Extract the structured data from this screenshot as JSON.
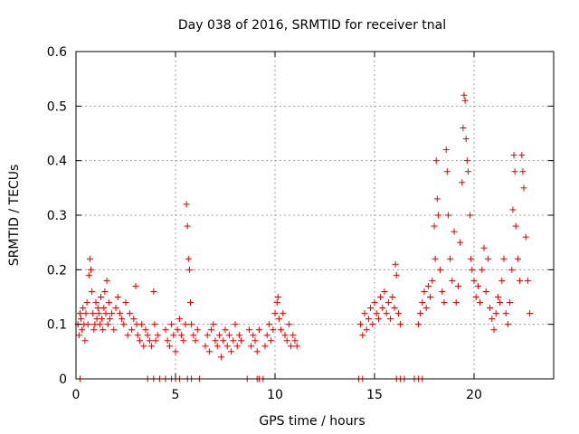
{
  "chart_data": {
    "type": "scatter",
    "title": "Day 038 of 2016, SRMTID for receiver tnal",
    "xlabel": "GPS time / hours",
    "ylabel": "SRMTID / TECUs",
    "xlim": [
      0,
      24
    ],
    "ylim": [
      0,
      0.6
    ],
    "xticks": [
      "0",
      "5",
      "10",
      "15",
      "20"
    ],
    "yticks": [
      "0",
      "0.1",
      "0.2",
      "0.3",
      "0.4",
      "0.5",
      "0.6"
    ],
    "grid": true,
    "marker": "+",
    "color": "#e00000",
    "series": [
      {
        "name": "SRMTID",
        "points": [
          [
            0.1,
            0.1
          ],
          [
            0.15,
            0.08
          ],
          [
            0.2,
            0.12
          ],
          [
            0.25,
            0.11
          ],
          [
            0.3,
            0.09
          ],
          [
            0.35,
            0.13
          ],
          [
            0.4,
            0.1
          ],
          [
            0.45,
            0.07
          ],
          [
            0.5,
            0.12
          ],
          [
            0.55,
            0.14
          ],
          [
            0.6,
            0.1
          ],
          [
            0.65,
            0.19
          ],
          [
            0.7,
            0.22
          ],
          [
            0.75,
            0.2
          ],
          [
            0.8,
            0.16
          ],
          [
            0.85,
            0.12
          ],
          [
            0.9,
            0.09
          ],
          [
            0.95,
            0.1
          ],
          [
            1.0,
            0.14
          ],
          [
            1.05,
            0.11
          ],
          [
            1.1,
            0.13
          ],
          [
            1.15,
            0.12
          ],
          [
            1.2,
            0.1
          ],
          [
            1.25,
            0.15
          ],
          [
            1.3,
            0.11
          ],
          [
            1.35,
            0.09
          ],
          [
            1.4,
            0.13
          ],
          [
            1.45,
            0.16
          ],
          [
            1.5,
            0.12
          ],
          [
            1.55,
            0.18
          ],
          [
            1.6,
            0.1
          ],
          [
            1.65,
            0.14
          ],
          [
            1.7,
            0.11
          ],
          [
            1.8,
            0.12
          ],
          [
            1.9,
            0.09
          ],
          [
            2.0,
            0.13
          ],
          [
            2.1,
            0.15
          ],
          [
            2.2,
            0.12
          ],
          [
            2.3,
            0.11
          ],
          [
            2.4,
            0.1
          ],
          [
            2.5,
            0.14
          ],
          [
            2.6,
            0.08
          ],
          [
            2.7,
            0.12
          ],
          [
            2.8,
            0.09
          ],
          [
            2.9,
            0.11
          ],
          [
            3.0,
            0.17
          ],
          [
            3.05,
            0.1
          ],
          [
            3.1,
            0.08
          ],
          [
            3.2,
            0.07
          ],
          [
            3.3,
            0.1
          ],
          [
            3.4,
            0.06
          ],
          [
            3.5,
            0.09
          ],
          [
            3.6,
            0.08
          ],
          [
            3.7,
            0.07
          ],
          [
            3.8,
            0.06
          ],
          [
            3.9,
            0.16
          ],
          [
            3.95,
            0.1
          ],
          [
            4.0,
            0.07
          ],
          [
            4.1,
            0.08
          ],
          [
            4.5,
            0.09
          ],
          [
            4.6,
            0.07
          ],
          [
            4.7,
            0.06
          ],
          [
            4.8,
            0.1
          ],
          [
            4.9,
            0.08
          ],
          [
            5.0,
            0.05
          ],
          [
            5.1,
            0.09
          ],
          [
            5.2,
            0.11
          ],
          [
            5.3,
            0.08
          ],
          [
            5.4,
            0.07
          ],
          [
            5.5,
            0.1
          ],
          [
            5.55,
            0.32
          ],
          [
            5.6,
            0.28
          ],
          [
            5.65,
            0.22
          ],
          [
            5.7,
            0.2
          ],
          [
            5.75,
            0.14
          ],
          [
            5.8,
            0.1
          ],
          [
            5.9,
            0.08
          ],
          [
            6.0,
            0.07
          ],
          [
            6.1,
            0.09
          ],
          [
            6.5,
            0.06
          ],
          [
            6.6,
            0.08
          ],
          [
            6.7,
            0.05
          ],
          [
            6.8,
            0.09
          ],
          [
            6.9,
            0.1
          ],
          [
            7.0,
            0.07
          ],
          [
            7.1,
            0.06
          ],
          [
            7.2,
            0.08
          ],
          [
            7.3,
            0.04
          ],
          [
            7.4,
            0.07
          ],
          [
            7.5,
            0.09
          ],
          [
            7.6,
            0.06
          ],
          [
            7.7,
            0.08
          ],
          [
            7.8,
            0.05
          ],
          [
            7.9,
            0.07
          ],
          [
            8.0,
            0.1
          ],
          [
            8.1,
            0.06
          ],
          [
            8.2,
            0.08
          ],
          [
            8.3,
            0.07
          ],
          [
            8.7,
            0.09
          ],
          [
            8.8,
            0.06
          ],
          [
            8.9,
            0.08
          ],
          [
            9.0,
            0.07
          ],
          [
            9.1,
            0.05
          ],
          [
            9.2,
            0.09
          ],
          [
            9.5,
            0.06
          ],
          [
            9.6,
            0.08
          ],
          [
            9.7,
            0.1
          ],
          [
            9.8,
            0.07
          ],
          [
            9.9,
            0.09
          ],
          [
            10.0,
            0.12
          ],
          [
            10.1,
            0.14
          ],
          [
            10.15,
            0.15
          ],
          [
            10.2,
            0.11
          ],
          [
            10.3,
            0.09
          ],
          [
            10.4,
            0.12
          ],
          [
            10.5,
            0.08
          ],
          [
            10.6,
            0.07
          ],
          [
            10.7,
            0.1
          ],
          [
            10.8,
            0.06
          ],
          [
            10.9,
            0.08
          ],
          [
            11.0,
            0.07
          ],
          [
            11.1,
            0.06
          ],
          [
            14.3,
            0.1
          ],
          [
            14.4,
            0.08
          ],
          [
            14.5,
            0.12
          ],
          [
            14.6,
            0.09
          ],
          [
            14.7,
            0.11
          ],
          [
            14.8,
            0.13
          ],
          [
            14.9,
            0.1
          ],
          [
            15.0,
            0.14
          ],
          [
            15.1,
            0.12
          ],
          [
            15.2,
            0.11
          ],
          [
            15.3,
            0.15
          ],
          [
            15.4,
            0.13
          ],
          [
            15.5,
            0.16
          ],
          [
            15.6,
            0.12
          ],
          [
            15.7,
            0.14
          ],
          [
            15.8,
            0.11
          ],
          [
            15.9,
            0.15
          ],
          [
            16.0,
            0.13
          ],
          [
            16.05,
            0.21
          ],
          [
            16.1,
            0.19
          ],
          [
            16.2,
            0.12
          ],
          [
            16.3,
            0.1
          ],
          [
            17.2,
            0.1
          ],
          [
            17.3,
            0.12
          ],
          [
            17.4,
            0.14
          ],
          [
            17.5,
            0.16
          ],
          [
            17.6,
            0.13
          ],
          [
            17.7,
            0.17
          ],
          [
            17.8,
            0.15
          ],
          [
            17.9,
            0.18
          ],
          [
            18.0,
            0.28
          ],
          [
            18.05,
            0.22
          ],
          [
            18.1,
            0.4
          ],
          [
            18.15,
            0.33
          ],
          [
            18.2,
            0.3
          ],
          [
            18.3,
            0.2
          ],
          [
            18.4,
            0.16
          ],
          [
            18.5,
            0.14
          ],
          [
            18.6,
            0.42
          ],
          [
            18.65,
            0.38
          ],
          [
            18.7,
            0.3
          ],
          [
            18.8,
            0.22
          ],
          [
            18.9,
            0.18
          ],
          [
            19.0,
            0.27
          ],
          [
            19.1,
            0.14
          ],
          [
            19.2,
            0.17
          ],
          [
            19.3,
            0.25
          ],
          [
            19.4,
            0.36
          ],
          [
            19.45,
            0.46
          ],
          [
            19.5,
            0.52
          ],
          [
            19.55,
            0.51
          ],
          [
            19.6,
            0.44
          ],
          [
            19.65,
            0.4
          ],
          [
            19.7,
            0.38
          ],
          [
            19.8,
            0.3
          ],
          [
            19.85,
            0.22
          ],
          [
            19.9,
            0.2
          ],
          [
            20.0,
            0.18
          ],
          [
            20.1,
            0.15
          ],
          [
            20.2,
            0.17
          ],
          [
            20.3,
            0.14
          ],
          [
            20.4,
            0.2
          ],
          [
            20.5,
            0.24
          ],
          [
            20.6,
            0.16
          ],
          [
            20.7,
            0.22
          ],
          [
            20.8,
            0.13
          ],
          [
            20.9,
            0.11
          ],
          [
            21.0,
            0.09
          ],
          [
            21.1,
            0.12
          ],
          [
            21.2,
            0.15
          ],
          [
            21.3,
            0.14
          ],
          [
            21.4,
            0.18
          ],
          [
            21.5,
            0.22
          ],
          [
            21.6,
            0.12
          ],
          [
            21.7,
            0.1
          ],
          [
            21.8,
            0.14
          ],
          [
            21.9,
            0.2
          ],
          [
            21.95,
            0.31
          ],
          [
            22.0,
            0.41
          ],
          [
            22.05,
            0.38
          ],
          [
            22.1,
            0.28
          ],
          [
            22.2,
            0.22
          ],
          [
            22.3,
            0.18
          ],
          [
            22.4,
            0.41
          ],
          [
            22.45,
            0.38
          ],
          [
            22.5,
            0.35
          ],
          [
            22.6,
            0.26
          ],
          [
            22.7,
            0.18
          ],
          [
            22.8,
            0.12
          ]
        ]
      }
    ],
    "zero_points_x": [
      0.2,
      3.6,
      3.9,
      4.2,
      4.5,
      4.8,
      5.0,
      5.2,
      5.6,
      5.8,
      6.2,
      8.6,
      9.1,
      9.2,
      9.4,
      14.2,
      14.4,
      16.1,
      16.3,
      16.5,
      17.0,
      17.2,
      17.4
    ]
  }
}
